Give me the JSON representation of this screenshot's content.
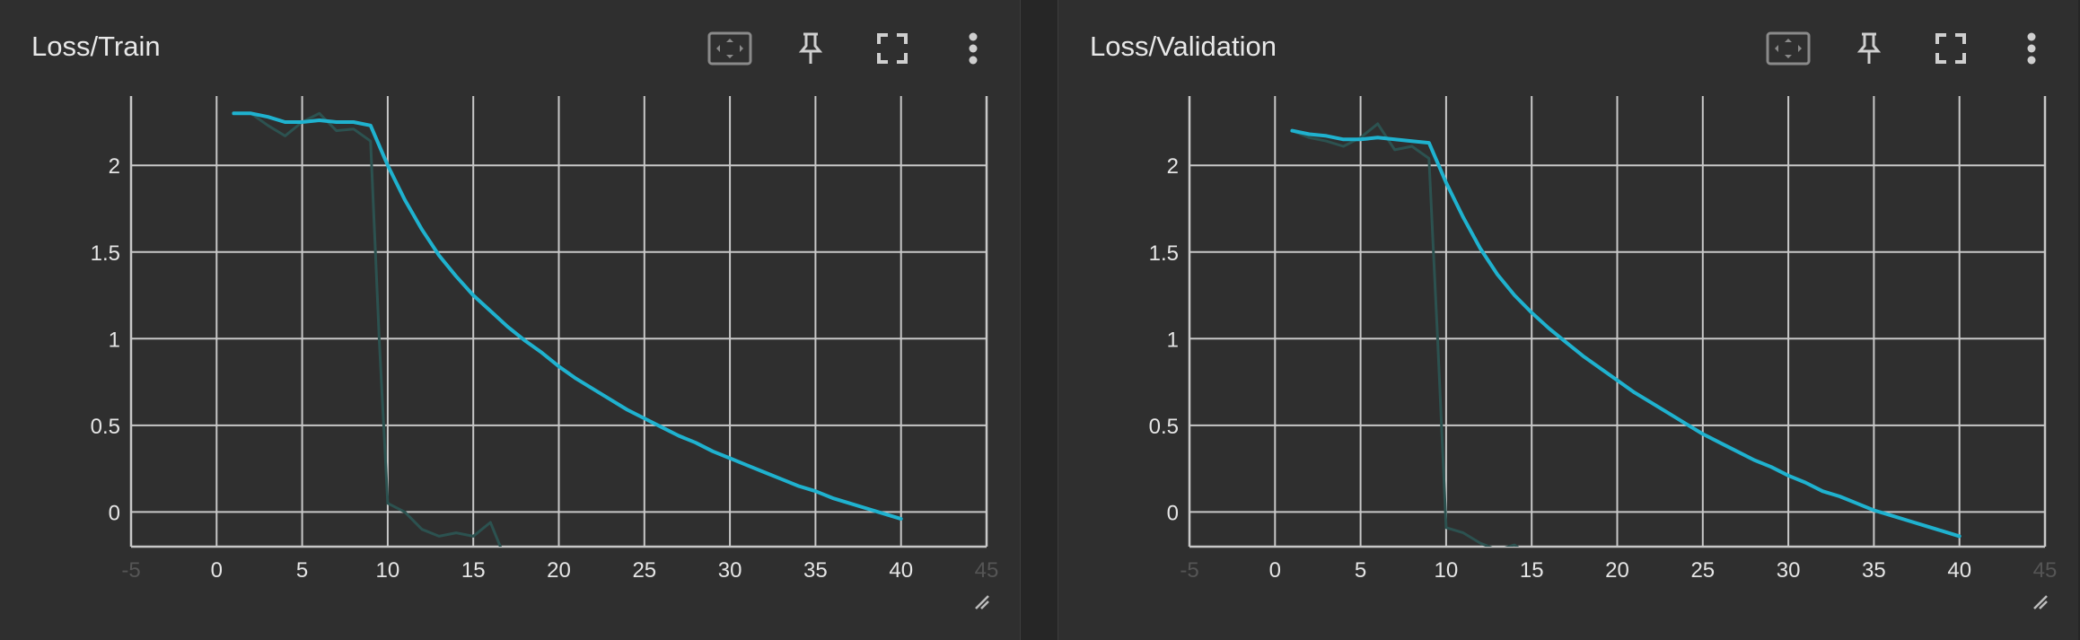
{
  "panels": [
    {
      "title": "Loss/Train",
      "toolbar": [
        "fit-domain-icon",
        "pin-icon",
        "fullscreen-icon",
        "more-vert-icon"
      ]
    },
    {
      "title": "Loss/Validation",
      "toolbar": [
        "fit-domain-icon",
        "pin-icon",
        "fullscreen-icon",
        "more-vert-icon"
      ]
    }
  ],
  "colors": {
    "smoothed": "#1fb2cf",
    "raw": "#2c5250",
    "grid": "#c8c8c8",
    "background": "#2f2f2f"
  },
  "chart_data": [
    {
      "type": "line",
      "title": "Loss/Train",
      "xlabel": "",
      "ylabel": "",
      "xlim": [
        -5,
        45
      ],
      "ylim": [
        -0.2,
        2.4
      ],
      "x_ticks": [
        "-5",
        "0",
        "5",
        "10",
        "15",
        "20",
        "25",
        "30",
        "35",
        "40",
        "45"
      ],
      "y_ticks": [
        "0",
        "0.5",
        "1",
        "1.5",
        "2"
      ],
      "grid": true,
      "series": [
        {
          "role": "smoothed",
          "x": [
            1,
            2,
            3,
            4,
            5,
            6,
            7,
            8,
            9,
            10,
            11,
            12,
            13,
            14,
            15,
            16,
            17,
            18,
            19,
            20,
            21,
            22,
            23,
            24,
            25,
            26,
            27,
            28,
            29,
            30,
            31,
            32,
            33,
            34,
            35,
            36,
            37,
            38,
            39,
            40
          ],
          "values": [
            2.3,
            2.3,
            2.28,
            2.25,
            2.25,
            2.26,
            2.25,
            2.25,
            2.23,
            2.0,
            1.8,
            1.63,
            1.48,
            1.36,
            1.25,
            1.16,
            1.07,
            0.99,
            0.92,
            0.84,
            0.77,
            0.71,
            0.65,
            0.59,
            0.54,
            0.49,
            0.44,
            0.4,
            0.35,
            0.31,
            0.27,
            0.23,
            0.19,
            0.15,
            0.12,
            0.08,
            0.05,
            0.02,
            -0.01,
            -0.04
          ]
        },
        {
          "role": "raw",
          "x": [
            1,
            2,
            3,
            4,
            5,
            6,
            7,
            8,
            9,
            9.5,
            10,
            11,
            12,
            13,
            14,
            15,
            16,
            17
          ],
          "values": [
            2.3,
            2.3,
            2.23,
            2.17,
            2.25,
            2.3,
            2.2,
            2.21,
            2.14,
            1.0,
            0.05,
            0.0,
            -0.1,
            -0.14,
            -0.12,
            -0.14,
            -0.06,
            -0.3
          ]
        }
      ]
    },
    {
      "type": "line",
      "title": "Loss/Validation",
      "xlabel": "",
      "ylabel": "",
      "xlim": [
        -5,
        45
      ],
      "ylim": [
        -0.2,
        2.4
      ],
      "x_ticks": [
        "-5",
        "0",
        "5",
        "10",
        "15",
        "20",
        "25",
        "30",
        "35",
        "40",
        "45"
      ],
      "y_ticks": [
        "0",
        "0.5",
        "1",
        "1.5",
        "2"
      ],
      "grid": true,
      "series": [
        {
          "role": "smoothed",
          "x": [
            1,
            2,
            3,
            4,
            5,
            6,
            7,
            8,
            9,
            10,
            11,
            12,
            13,
            14,
            15,
            16,
            17,
            18,
            19,
            20,
            21,
            22,
            23,
            24,
            25,
            26,
            27,
            28,
            29,
            30,
            31,
            32,
            33,
            34,
            35,
            36,
            37,
            38,
            39,
            40
          ],
          "values": [
            2.2,
            2.18,
            2.17,
            2.15,
            2.15,
            2.16,
            2.15,
            2.14,
            2.13,
            1.9,
            1.7,
            1.52,
            1.37,
            1.25,
            1.15,
            1.06,
            0.98,
            0.9,
            0.83,
            0.76,
            0.69,
            0.63,
            0.57,
            0.51,
            0.45,
            0.4,
            0.35,
            0.3,
            0.26,
            0.21,
            0.17,
            0.12,
            0.09,
            0.05,
            0.01,
            -0.02,
            -0.05,
            -0.08,
            -0.11,
            -0.14
          ]
        },
        {
          "role": "raw",
          "x": [
            1,
            2,
            3,
            4,
            5,
            6,
            7,
            8,
            9,
            9.5,
            10,
            11,
            12,
            13,
            14,
            15,
            16
          ],
          "values": [
            2.2,
            2.16,
            2.14,
            2.11,
            2.16,
            2.24,
            2.09,
            2.11,
            2.04,
            1.0,
            -0.09,
            -0.12,
            -0.18,
            -0.22,
            -0.19,
            -0.26,
            -0.26
          ]
        }
      ]
    }
  ]
}
